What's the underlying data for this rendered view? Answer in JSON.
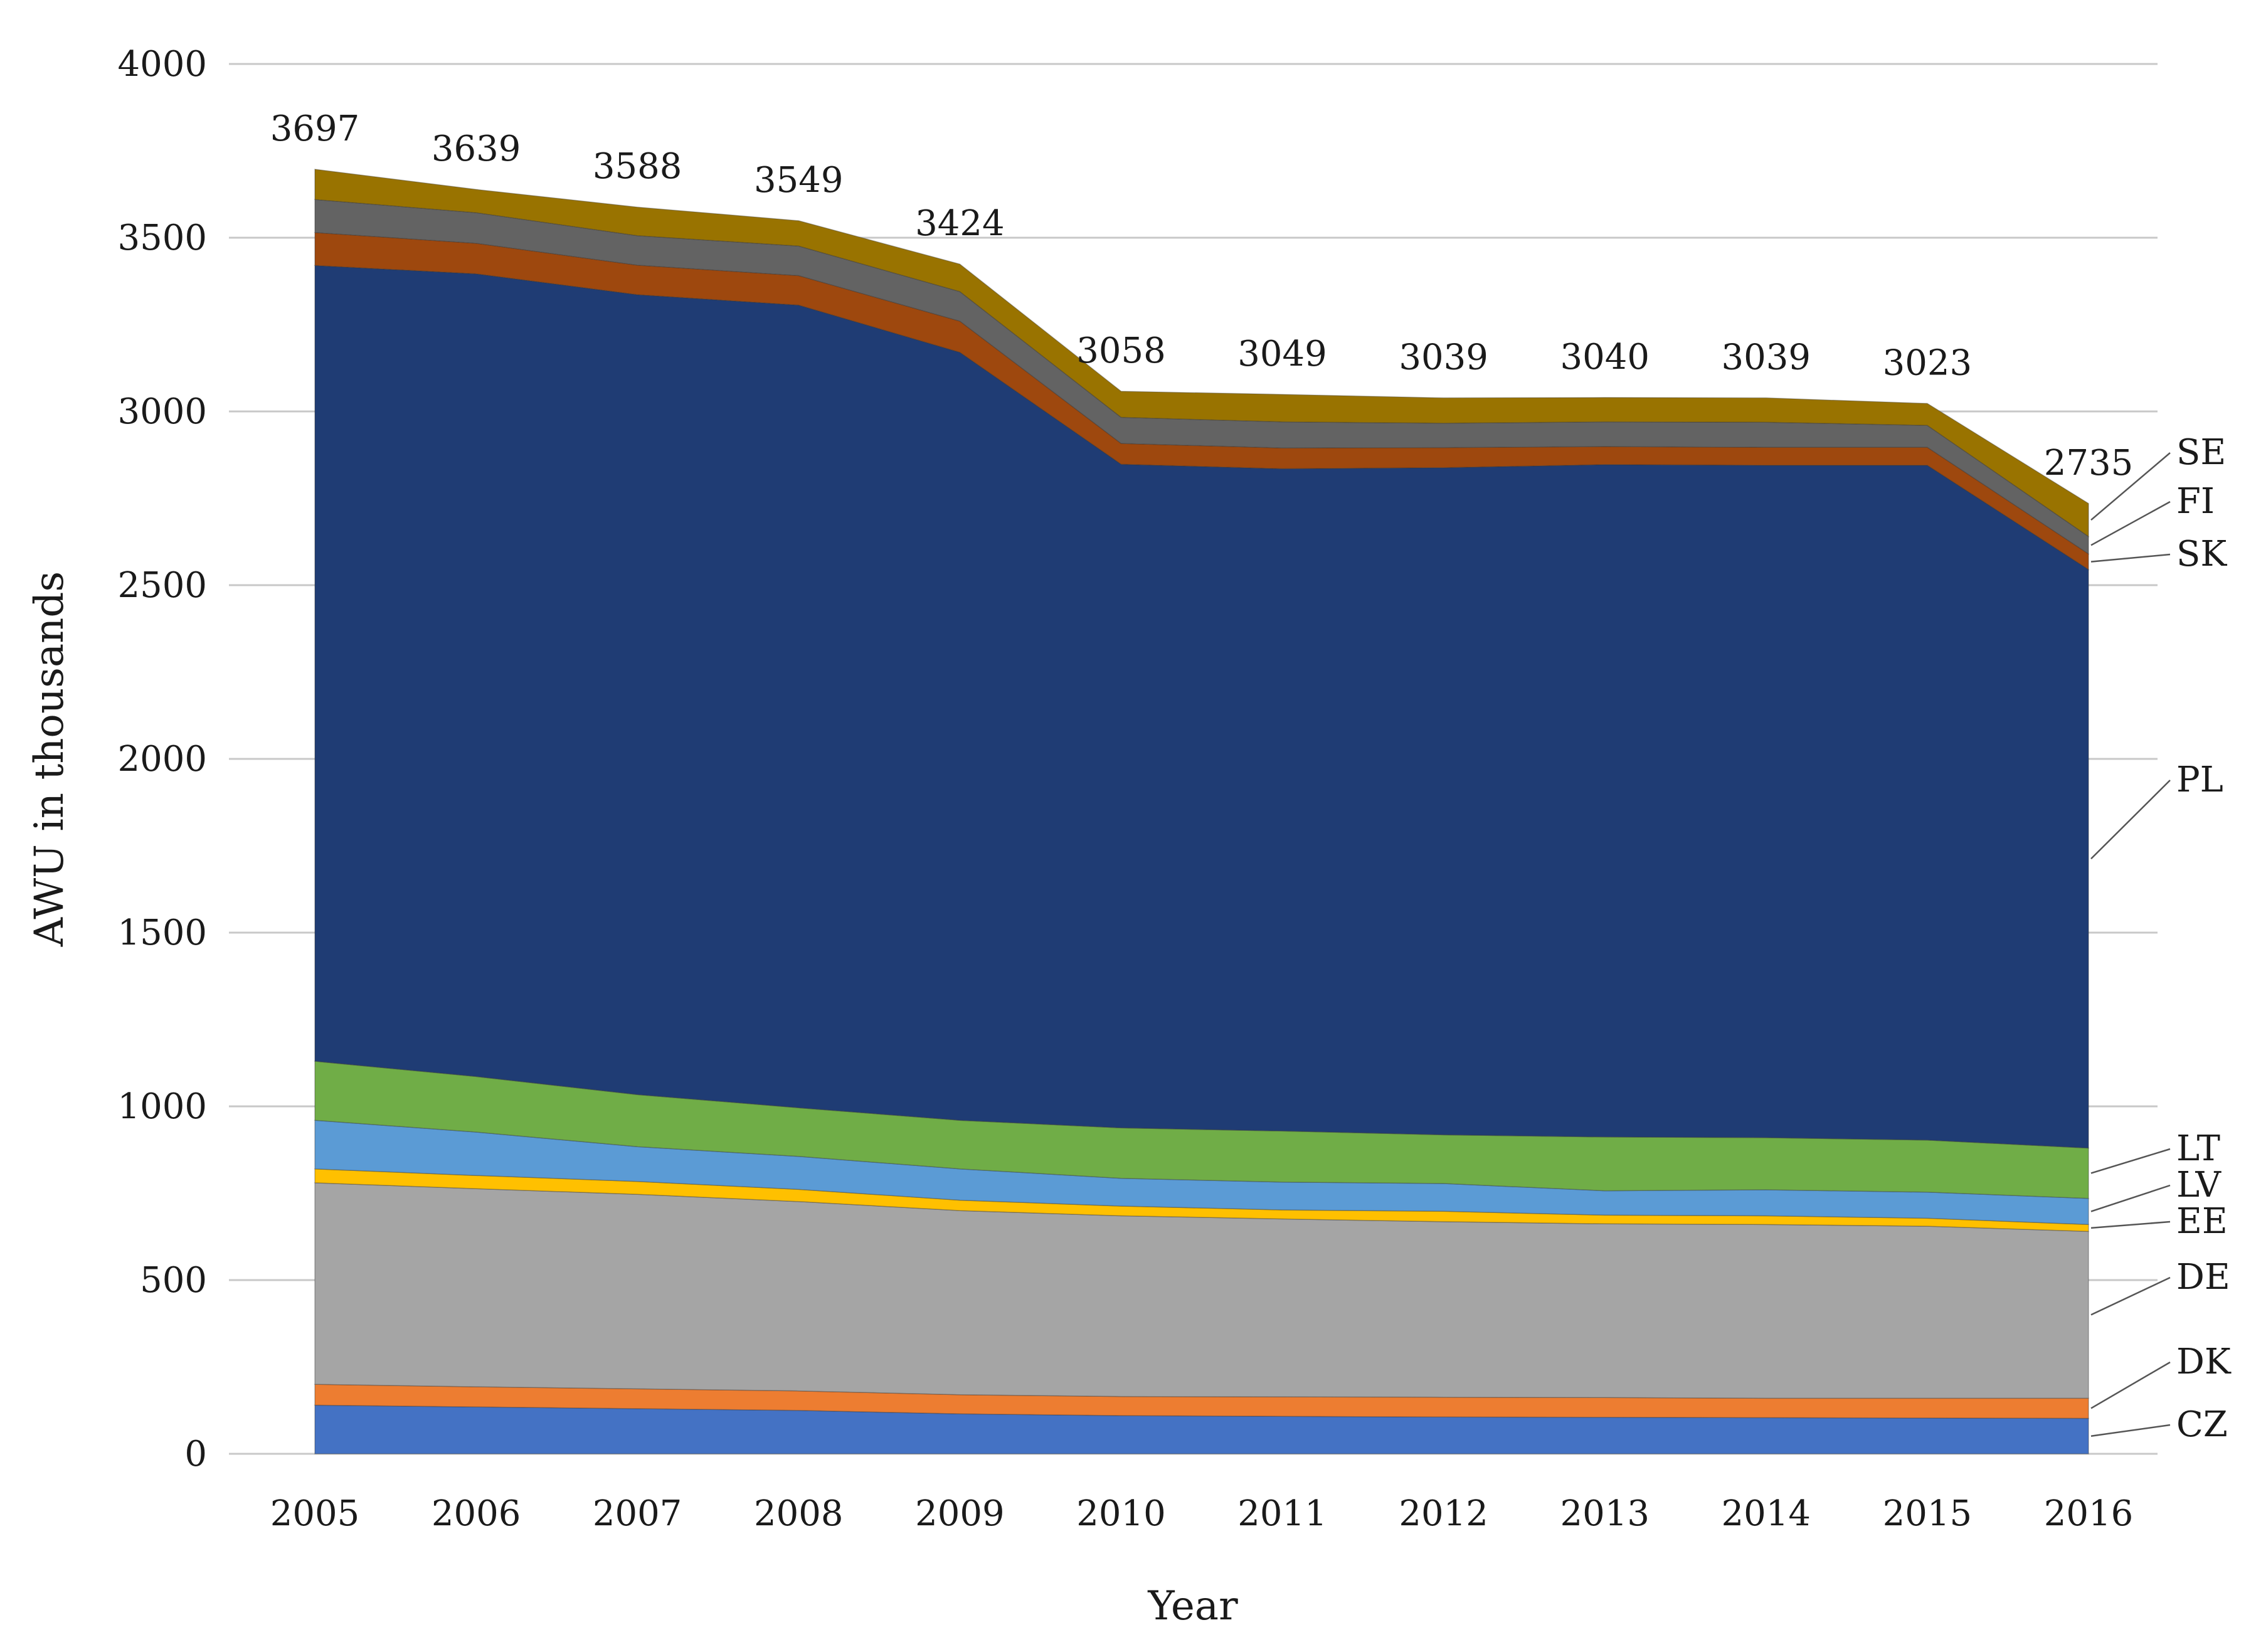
{
  "chart_data": {
    "type": "area",
    "stacked": true,
    "title": "",
    "xlabel": "Year",
    "ylabel": "AWU in thousands",
    "ylim": [
      0,
      4000
    ],
    "yticks": [
      0,
      500,
      1000,
      1500,
      2000,
      2500,
      3000,
      3500,
      4000
    ],
    "grid": true,
    "legend_placement": "right",
    "categories": [
      "2005",
      "2006",
      "2007",
      "2008",
      "2009",
      "2010",
      "2011",
      "2012",
      "2013",
      "2014",
      "2015",
      "2016"
    ],
    "totals": [
      3697,
      3639,
      3588,
      3549,
      3424,
      3058,
      3049,
      3039,
      3040,
      3039,
      3023,
      2735
    ],
    "series": [
      {
        "name": "CZ",
        "color": "#4472c4",
        "values": [
          140,
          135,
          130,
          125,
          115,
          110,
          108,
          106,
          105,
          104,
          103,
          102
        ]
      },
      {
        "name": "DK",
        "color": "#ed7d31",
        "values": [
          60,
          58,
          57,
          56,
          55,
          55,
          56,
          57,
          57,
          56,
          57,
          58
        ]
      },
      {
        "name": "DE",
        "color": "#a5a5a5",
        "values": [
          580,
          570,
          560,
          545,
          530,
          520,
          512,
          505,
          500,
          500,
          495,
          480
        ]
      },
      {
        "name": "EE",
        "color": "#ffc000",
        "values": [
          40,
          38,
          37,
          35,
          30,
          28,
          26,
          30,
          25,
          25,
          23,
          20
        ]
      },
      {
        "name": "LV",
        "color": "#5b9bd5",
        "values": [
          140,
          125,
          100,
          95,
          90,
          80,
          80,
          80,
          70,
          75,
          75,
          75
        ]
      },
      {
        "name": "LT",
        "color": "#70ad47",
        "values": [
          170,
          160,
          150,
          140,
          140,
          145,
          147,
          140,
          155,
          150,
          150,
          145
        ]
      },
      {
        "name": "PL",
        "color": "#1f3c74",
        "values": [
          2290,
          2310,
          2302,
          2310,
          2210,
          1910,
          1906,
          1920,
          1935,
          1935,
          1942,
          1665
        ]
      },
      {
        "name": "SK",
        "color": "#9e480e",
        "values": [
          95,
          88,
          85,
          85,
          90,
          60,
          60,
          58,
          52,
          52,
          52,
          45
        ]
      },
      {
        "name": "FI",
        "color": "#636363",
        "values": [
          95,
          88,
          85,
          85,
          85,
          75,
          75,
          70,
          71,
          72,
          63,
          50
        ]
      },
      {
        "name": "SE",
        "color": "#997300",
        "values": [
          87,
          67,
          82,
          73,
          79,
          75,
          79,
          73,
          70,
          70,
          63,
          95
        ]
      }
    ],
    "legend_order": [
      "SE",
      "FI",
      "SK",
      "PL",
      "LT",
      "LV",
      "EE",
      "DE",
      "DK",
      "CZ"
    ]
  }
}
